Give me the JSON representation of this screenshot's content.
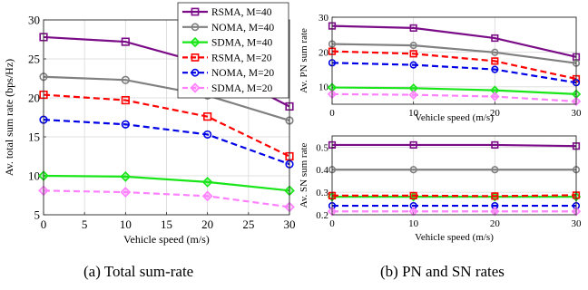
{
  "captions": {
    "a": "(a) Total sum-rate",
    "b": "(b) PN and SN rates"
  },
  "legend_entries": [
    {
      "label": "RSMA, M=40",
      "color": "#7B0C87",
      "dash": "solid",
      "marker": "square"
    },
    {
      "label": "NOMA, M=40",
      "color": "#808080",
      "dash": "solid",
      "marker": "circle"
    },
    {
      "label": "SDMA, M=40",
      "color": "#19E619",
      "dash": "solid",
      "marker": "diamond"
    },
    {
      "label": "RSMA, M=20",
      "color": "#FF0000",
      "dash": "dashed",
      "marker": "square"
    },
    {
      "label": "NOMA, M=20",
      "color": "#0000E6",
      "dash": "dashed",
      "marker": "circle"
    },
    {
      "label": "SDMA, M=20",
      "color": "#FF80FF",
      "dash": "dashed",
      "marker": "diamond"
    }
  ],
  "chart_data": [
    {
      "id": "a",
      "type": "line",
      "xlabel": "Vehicle speed (m/s)",
      "ylabel": "Av. total sum rate (bps/Hz)",
      "xlim": [
        0,
        30
      ],
      "ylim": [
        5,
        30
      ],
      "xticks": [
        "0",
        "5",
        "10",
        "15",
        "20",
        "25",
        "30"
      ],
      "yticks": [
        "5",
        "10",
        "15",
        "20",
        "25",
        "30"
      ],
      "grid": true,
      "legend": "top-right",
      "x": [
        0,
        10,
        20,
        30
      ],
      "series": [
        {
          "name": "RSMA, M=40",
          "values": [
            27.8,
            27.2,
            24.3,
            18.9
          ]
        },
        {
          "name": "NOMA, M=40",
          "values": [
            22.7,
            22.3,
            20.3,
            17.1
          ]
        },
        {
          "name": "SDMA, M=40",
          "values": [
            10.0,
            9.9,
            9.2,
            8.1
          ]
        },
        {
          "name": "RSMA, M=20",
          "values": [
            20.4,
            19.7,
            17.6,
            12.5
          ]
        },
        {
          "name": "NOMA, M=20",
          "values": [
            17.2,
            16.6,
            15.3,
            11.5
          ]
        },
        {
          "name": "SDMA, M=20",
          "values": [
            8.1,
            7.9,
            7.4,
            6.0
          ]
        }
      ]
    },
    {
      "id": "b-top",
      "type": "line",
      "xlabel": "Vehicle speed (m/s)",
      "ylabel": "Av. PN sum rate",
      "xlim": [
        0,
        30
      ],
      "ylim": [
        5,
        30
      ],
      "xticks": [
        "0",
        "10",
        "20",
        "30"
      ],
      "yticks": [
        "10",
        "20",
        "30"
      ],
      "grid": true,
      "x": [
        0,
        10,
        20,
        30
      ],
      "series": [
        {
          "name": "RSMA, M=40",
          "values": [
            27.5,
            26.9,
            24.0,
            18.6
          ]
        },
        {
          "name": "NOMA, M=40",
          "values": [
            22.3,
            21.9,
            19.9,
            16.8
          ]
        },
        {
          "name": "SDMA, M=40",
          "values": [
            9.8,
            9.6,
            9.0,
            7.9
          ]
        },
        {
          "name": "RSMA, M=20",
          "values": [
            20.2,
            19.5,
            17.4,
            12.3
          ]
        },
        {
          "name": "NOMA, M=20",
          "values": [
            16.9,
            16.3,
            15.0,
            11.2
          ]
        },
        {
          "name": "SDMA, M=20",
          "values": [
            7.9,
            7.7,
            7.2,
            5.8
          ]
        }
      ]
    },
    {
      "id": "b-bottom",
      "type": "line",
      "xlabel": "Vehicle speed (m/s)",
      "ylabel": "Av. SN sum rate",
      "xlim": [
        0,
        30
      ],
      "ylim": [
        0.2,
        0.55
      ],
      "xticks": [
        "0",
        "10",
        "20",
        "30"
      ],
      "yticks": [
        "0.2",
        "0.3",
        "0.4",
        "0.5"
      ],
      "grid": true,
      "x": [
        0,
        10,
        20,
        30
      ],
      "series": [
        {
          "name": "RSMA, M=40",
          "values": [
            0.51,
            0.51,
            0.51,
            0.505
          ]
        },
        {
          "name": "NOMA, M=40",
          "values": [
            0.4,
            0.4,
            0.4,
            0.4
          ]
        },
        {
          "name": "SDMA, M=40",
          "values": [
            0.28,
            0.28,
            0.28,
            0.28
          ]
        },
        {
          "name": "RSMA, M=20",
          "values": [
            0.285,
            0.285,
            0.283,
            0.287
          ]
        },
        {
          "name": "NOMA, M=20",
          "values": [
            0.24,
            0.24,
            0.24,
            0.24
          ]
        },
        {
          "name": "SDMA, M=20",
          "values": [
            0.215,
            0.215,
            0.215,
            0.215
          ]
        }
      ]
    }
  ]
}
